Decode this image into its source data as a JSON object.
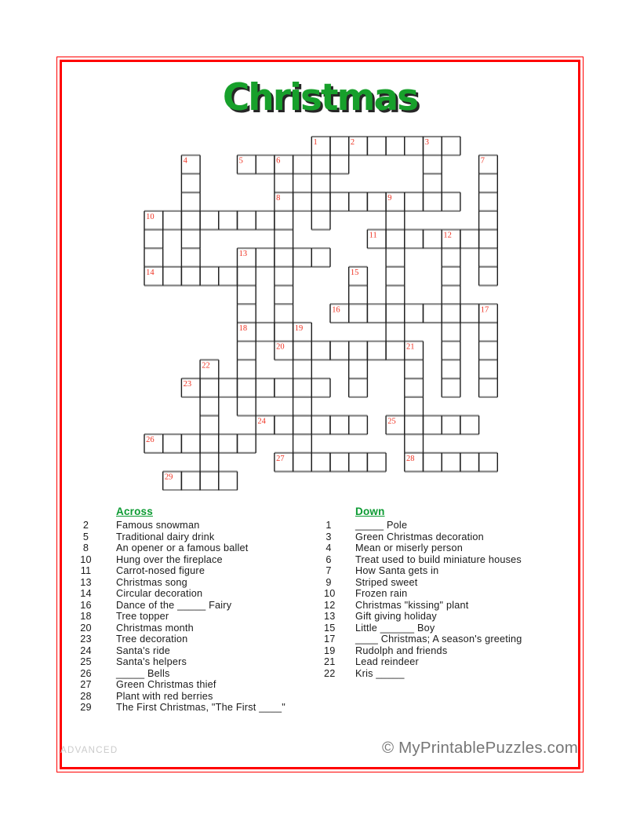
{
  "title": "Christmas",
  "colors": {
    "border_red": "#ff0000",
    "title_green": "#17a02b",
    "title_shadow": "#262626",
    "header_green": "#0d9b33",
    "cell_number_red": "#ee3222",
    "grid_line_horizontal": "#848484",
    "grid_line_vertical": "#1d1d1d",
    "cell_fill": "#ffffff",
    "credit_gray": "#767676",
    "level_gray": "#cbcbcb"
  },
  "grid": {
    "cols": 19,
    "rows": 19,
    "cells_by_row": [
      [
        9,
        10,
        11,
        12,
        13,
        14,
        15,
        16
      ],
      [
        2,
        5,
        6,
        7,
        8,
        9,
        10,
        15,
        18
      ],
      [
        2,
        7,
        9,
        15,
        18
      ],
      [
        2,
        7,
        8,
        9,
        10,
        11,
        12,
        13,
        14,
        15,
        16,
        18
      ],
      [
        0,
        1,
        2,
        3,
        4,
        5,
        6,
        7,
        9,
        13,
        18
      ],
      [
        0,
        2,
        7,
        12,
        13,
        14,
        15,
        16,
        17,
        18
      ],
      [
        0,
        2,
        5,
        6,
        7,
        8,
        9,
        13,
        16,
        18
      ],
      [
        0,
        1,
        2,
        3,
        4,
        5,
        7,
        11,
        13,
        16,
        18
      ],
      [
        5,
        7,
        11,
        13,
        16
      ],
      [
        5,
        7,
        10,
        11,
        12,
        13,
        14,
        15,
        16,
        17,
        18
      ],
      [
        5,
        6,
        7,
        8,
        13,
        16,
        18
      ],
      [
        5,
        7,
        8,
        9,
        10,
        11,
        12,
        13,
        14,
        16,
        18
      ],
      [
        3,
        5,
        8,
        11,
        14,
        16,
        18
      ],
      [
        2,
        3,
        4,
        5,
        6,
        7,
        8,
        9,
        11,
        14,
        16,
        18
      ],
      [
        3,
        5,
        8,
        14
      ],
      [
        3,
        6,
        7,
        8,
        9,
        10,
        11,
        13,
        14,
        15,
        16,
        17
      ],
      [
        0,
        1,
        2,
        3,
        4,
        5,
        8,
        14
      ],
      [
        3,
        7,
        8,
        9,
        10,
        11,
        12,
        14,
        15,
        16,
        17,
        18
      ],
      [
        1,
        2,
        3,
        4
      ]
    ],
    "numbers": [
      {
        "n": "1",
        "c": 9,
        "r": 0
      },
      {
        "n": "2",
        "c": 11,
        "r": 0
      },
      {
        "n": "3",
        "c": 15,
        "r": 0
      },
      {
        "n": "4",
        "c": 2,
        "r": 1
      },
      {
        "n": "5",
        "c": 5,
        "r": 1
      },
      {
        "n": "6",
        "c": 7,
        "r": 1
      },
      {
        "n": "7",
        "c": 18,
        "r": 1
      },
      {
        "n": "8",
        "c": 7,
        "r": 3
      },
      {
        "n": "9",
        "c": 13,
        "r": 3
      },
      {
        "n": "10",
        "c": 0,
        "r": 4
      },
      {
        "n": "11",
        "c": 12,
        "r": 5
      },
      {
        "n": "12",
        "c": 16,
        "r": 5
      },
      {
        "n": "13",
        "c": 5,
        "r": 6
      },
      {
        "n": "14",
        "c": 0,
        "r": 7
      },
      {
        "n": "15",
        "c": 11,
        "r": 7
      },
      {
        "n": "16",
        "c": 10,
        "r": 9
      },
      {
        "n": "17",
        "c": 18,
        "r": 9
      },
      {
        "n": "18",
        "c": 5,
        "r": 10
      },
      {
        "n": "19",
        "c": 8,
        "r": 10
      },
      {
        "n": "20",
        "c": 7,
        "r": 11
      },
      {
        "n": "21",
        "c": 14,
        "r": 11
      },
      {
        "n": "22",
        "c": 3,
        "r": 12
      },
      {
        "n": "23",
        "c": 2,
        "r": 13
      },
      {
        "n": "24",
        "c": 6,
        "r": 15
      },
      {
        "n": "25",
        "c": 13,
        "r": 15
      },
      {
        "n": "26",
        "c": 0,
        "r": 16
      },
      {
        "n": "27",
        "c": 7,
        "r": 17
      },
      {
        "n": "28",
        "c": 14,
        "r": 17
      },
      {
        "n": "29",
        "c": 1,
        "r": 18
      }
    ]
  },
  "clues": {
    "across_header": "Across",
    "down_header": "Down",
    "across": [
      {
        "num": "2",
        "text": "Famous snowman"
      },
      {
        "num": "5",
        "text": "Traditional dairy drink"
      },
      {
        "num": "8",
        "text": "An opener or a famous ballet"
      },
      {
        "num": "10",
        "text": "Hung over the fireplace"
      },
      {
        "num": "11",
        "text": "Carrot-nosed figure"
      },
      {
        "num": "13",
        "text": "Christmas song"
      },
      {
        "num": "14",
        "text": "Circular decoration"
      },
      {
        "num": "16",
        "text": "Dance of the _____ Fairy"
      },
      {
        "num": "18",
        "text": "Tree topper"
      },
      {
        "num": "20",
        "text": "Christmas month"
      },
      {
        "num": "23",
        "text": "Tree decoration"
      },
      {
        "num": "24",
        "text": "Santa's ride"
      },
      {
        "num": "25",
        "text": "Santa's helpers"
      },
      {
        "num": "26",
        "text": "_____ Bells"
      },
      {
        "num": "27",
        "text": "Green Christmas thief"
      },
      {
        "num": "28",
        "text": "Plant with red berries"
      },
      {
        "num": "29",
        "text": "The First Christmas, \"The First ____\""
      }
    ],
    "down": [
      {
        "num": "1",
        "text": "_____ Pole"
      },
      {
        "num": "3",
        "text": "Green Christmas decoration"
      },
      {
        "num": "4",
        "text": "Mean or miserly person"
      },
      {
        "num": "6",
        "text": "Treat used to build miniature houses"
      },
      {
        "num": "7",
        "text": "How Santa gets in"
      },
      {
        "num": "9",
        "text": "Striped sweet"
      },
      {
        "num": "10",
        "text": "Frozen rain"
      },
      {
        "num": "12",
        "text": "Christmas \"kissing\" plant"
      },
      {
        "num": "13",
        "text": "Gift giving holiday"
      },
      {
        "num": "15",
        "text": "Little ______ Boy"
      },
      {
        "num": "17",
        "text": "____ Christmas; A season's greeting"
      },
      {
        "num": "19",
        "text": "Rudolph and friends"
      },
      {
        "num": "21",
        "text": "Lead reindeer"
      },
      {
        "num": "22",
        "text": "Kris _____"
      }
    ]
  },
  "footer": {
    "level": "ADVANCED",
    "credit": "© MyPrintablePuzzles.com"
  }
}
